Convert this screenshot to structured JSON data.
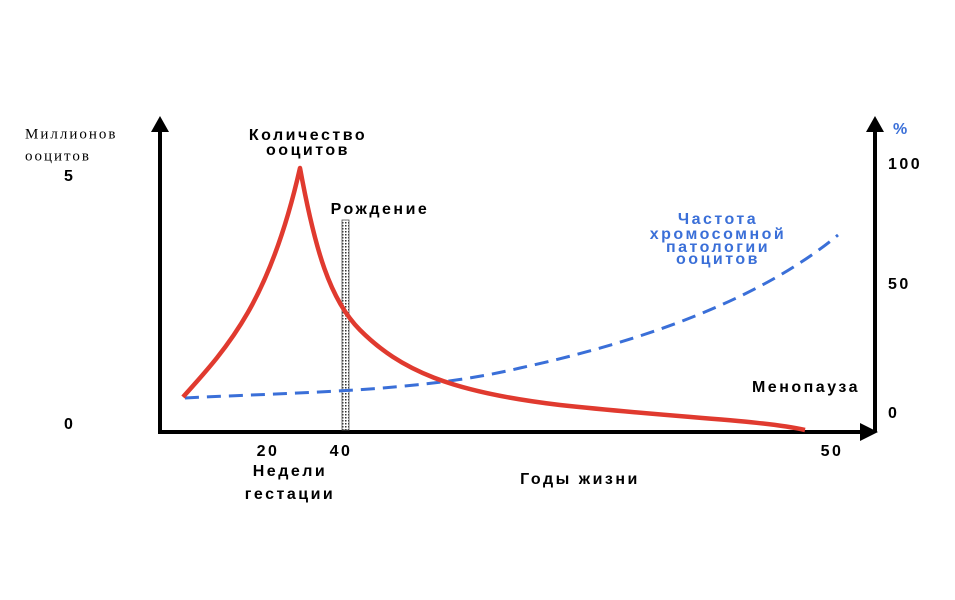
{
  "left_axis": {
    "label_lines": [
      "Миллионов",
      "ооцитов"
    ],
    "ticks": [
      "5",
      "0"
    ]
  },
  "right_axis": {
    "unit": "%",
    "ticks": [
      "100",
      "50",
      "0"
    ]
  },
  "x_axis": {
    "ticks": [
      "20",
      "40",
      "50"
    ],
    "weeks_label_lines": [
      "Недели",
      "гестации"
    ],
    "years_label": "Годы жизни"
  },
  "annotations": {
    "oocyte_count_lines": [
      "Количество",
      "ооцитов"
    ],
    "birth": "Рождение",
    "pathology_lines": [
      "Частота",
      "хромосомной",
      "патологии",
      "ооцитов"
    ],
    "menopause": "Менопауза"
  }
}
